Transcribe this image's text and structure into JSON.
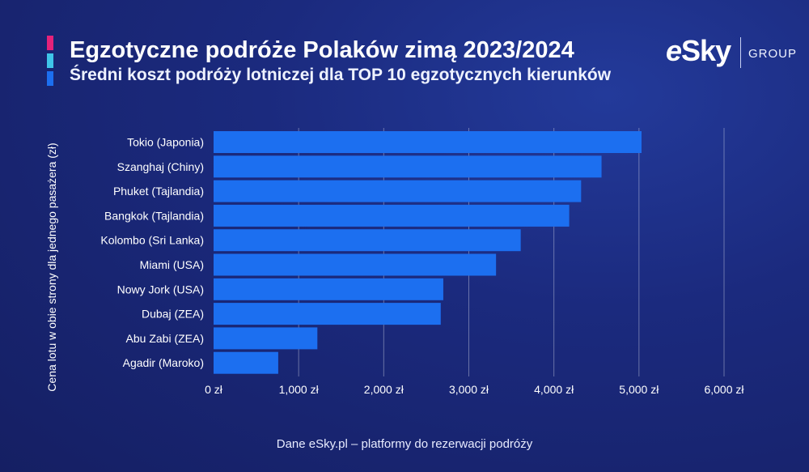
{
  "title": "Egzotyczne podróże Polaków zimą 2023/2024",
  "subtitle": "Średni koszt podróży lotniczej dla TOP 10 egzotycznych kierunków",
  "brand": {
    "logo": "eSky",
    "group": "GROUP"
  },
  "footer": "Dane eSky.pl – platformy do rezerwacji podróży",
  "colors": {
    "bar": "#1c6ff0",
    "stripe_pink": "#e5227a",
    "stripe_cyan": "#3fc5e8",
    "stripe_blue": "#1c6ff0"
  },
  "chart_data": {
    "type": "bar",
    "orientation": "horizontal",
    "categories": [
      "Tokio (Japonia)",
      "Szanghaj (Chiny)",
      "Phuket (Tajlandia)",
      "Bangkok (Tajlandia)",
      "Kolombo (Sri Lanka)",
      "Miami (USA)",
      "Nowy Jork (USA)",
      "Dubaj (ZEA)",
      "Abu Zabi (ZEA)",
      "Agadir (Maroko)"
    ],
    "values": [
      5030,
      4560,
      4320,
      4180,
      3610,
      3320,
      2700,
      2670,
      1220,
      760
    ],
    "xlabel": "",
    "ylabel": "Cena lotu w obie strony dla jednego pasażera (zł)",
    "xlim": [
      0,
      6000
    ],
    "ticks": [
      0,
      1000,
      2000,
      3000,
      4000,
      5000,
      6000
    ],
    "tick_labels": [
      "0 zł",
      "1,000 zł",
      "2,000 zł",
      "3,000 zł",
      "4,000 zł",
      "5,000 zł",
      "6,000 zł"
    ],
    "grid": true
  }
}
